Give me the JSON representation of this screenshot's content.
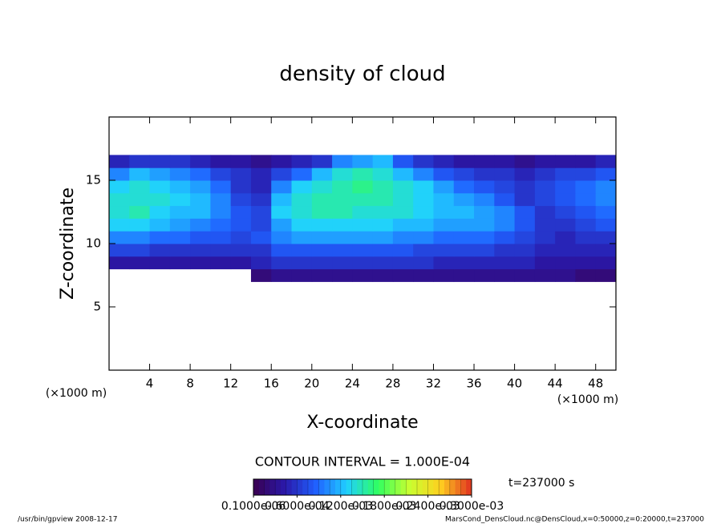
{
  "chart_data": {
    "type": "contour",
    "title": "density of cloud",
    "x_label": "X-coordinate",
    "y_label": "Z-coordinate",
    "x_unit": "(×1000 m)",
    "y_unit": "(×1000 m)",
    "contour_interval": "CONTOUR INTERVAL = 1.000E-04",
    "time_label": "t=237000 s",
    "footer_left": "/usr/bin/gpview   2008-12-17",
    "footer_right": "MarsCond_DensCloud.nc@DensCloud,x=0:50000,z=0:20000,t=237000",
    "xlim": [
      0,
      50
    ],
    "xticks": [
      4,
      8,
      12,
      16,
      20,
      24,
      28,
      32,
      36,
      40,
      44,
      48
    ],
    "ylim": [
      0,
      20
    ],
    "yticks": [
      5,
      10,
      15
    ],
    "x": [
      1,
      3,
      5,
      7,
      9,
      11,
      13,
      15,
      17,
      19,
      21,
      23,
      25,
      27,
      29,
      31,
      33,
      35,
      37,
      39,
      41,
      43,
      45,
      47,
      49
    ],
    "z": [
      7.5,
      8.5,
      9.5,
      10.5,
      11.5,
      12.5,
      13.5,
      14.5,
      15.5,
      16.5
    ],
    "values": [
      [
        null,
        null,
        null,
        null,
        null,
        null,
        null,
        2e-05,
        3e-05,
        3e-05,
        3e-05,
        3e-05,
        3e-05,
        3e-05,
        3e-05,
        3e-05,
        3e-05,
        3e-05,
        3e-05,
        3e-05,
        3e-05,
        3e-05,
        3e-05,
        2e-05,
        2e-05
      ],
      [
        4e-05,
        4e-05,
        4e-05,
        4e-05,
        4e-05,
        4e-05,
        4e-05,
        5e-05,
        6e-05,
        6e-05,
        6e-05,
        6e-05,
        6e-05,
        6e-05,
        6e-05,
        6e-05,
        5e-05,
        5e-05,
        5e-05,
        5e-05,
        5e-05,
        4e-05,
        4e-05,
        4e-05,
        4e-05
      ],
      [
        7e-05,
        7e-05,
        6e-05,
        6e-05,
        6e-05,
        6e-05,
        6e-05,
        6e-05,
        8e-05,
        8e-05,
        8e-05,
        8e-05,
        8e-05,
        8e-05,
        8e-05,
        7e-05,
        7e-05,
        7e-05,
        7e-05,
        6e-05,
        6e-05,
        5e-05,
        5e-05,
        5e-05,
        5e-05
      ],
      [
        0.0001,
        0.0001,
        9e-05,
        9e-05,
        8e-05,
        8e-05,
        7e-05,
        8e-05,
        0.0001,
        0.00011,
        0.00011,
        0.00011,
        0.00011,
        0.00011,
        0.0001,
        0.0001,
        9e-05,
        9e-05,
        9e-05,
        8e-05,
        7e-05,
        6e-05,
        5e-05,
        6e-05,
        6e-05
      ],
      [
        0.00013,
        0.00013,
        0.00012,
        0.00011,
        0.0001,
        9e-05,
        8e-05,
        7e-05,
        0.00011,
        0.00013,
        0.00013,
        0.00013,
        0.00013,
        0.00013,
        0.00012,
        0.00012,
        0.00011,
        0.00011,
        0.00011,
        0.0001,
        8e-05,
        6e-05,
        6e-05,
        7e-05,
        8e-05
      ],
      [
        0.00014,
        0.00015,
        0.00013,
        0.00012,
        0.00012,
        0.0001,
        8e-05,
        7e-05,
        0.00013,
        0.00014,
        0.00015,
        0.00015,
        0.00014,
        0.00014,
        0.00014,
        0.00013,
        0.00012,
        0.00012,
        0.00011,
        0.0001,
        8e-05,
        6e-05,
        7e-05,
        8e-05,
        9e-05
      ],
      [
        0.00014,
        0.00014,
        0.00014,
        0.00013,
        0.00012,
        0.0001,
        7e-05,
        6e-05,
        0.00012,
        0.00014,
        0.00015,
        0.00015,
        0.00015,
        0.00015,
        0.00014,
        0.00013,
        0.00012,
        0.00011,
        0.0001,
        8e-05,
        6e-05,
        7e-05,
        8e-05,
        9e-05,
        0.0001
      ],
      [
        0.00013,
        0.00014,
        0.00013,
        0.00012,
        0.00011,
        9e-05,
        6e-05,
        5e-05,
        0.0001,
        0.00013,
        0.00014,
        0.00015,
        0.00016,
        0.00015,
        0.00014,
        0.00013,
        0.00011,
        9e-05,
        8e-05,
        7e-05,
        6e-05,
        7e-05,
        8e-05,
        9e-05,
        0.0001
      ],
      [
        0.0001,
        0.00012,
        0.00011,
        0.0001,
        9e-05,
        7e-05,
        6e-05,
        5e-05,
        7e-05,
        9e-05,
        0.00012,
        0.00014,
        0.00015,
        0.00014,
        0.00012,
        0.0001,
        8e-05,
        7e-05,
        6e-05,
        6e-05,
        5e-05,
        6e-05,
        7e-05,
        7e-05,
        8e-05
      ],
      [
        5e-05,
        6e-05,
        6e-05,
        6e-05,
        5e-05,
        4e-05,
        4e-05,
        3e-05,
        4e-05,
        5e-05,
        6e-05,
        0.0001,
        0.00011,
        0.00012,
        8e-05,
        6e-05,
        5e-05,
        4e-05,
        4e-05,
        4e-05,
        3e-05,
        4e-05,
        4e-05,
        4e-05,
        5e-05
      ]
    ],
    "colorbar": {
      "lim": [
        0,
        0.0003
      ],
      "ticks": [
        {
          "value": 1e-07,
          "label": "0.1000e-06"
        },
        {
          "value": 6e-05,
          "label": "0.6000e-04"
        },
        {
          "value": 0.00012,
          "label": "0.1200e-03"
        },
        {
          "value": 0.00018,
          "label": "0.1800e-03"
        },
        {
          "value": 0.00024,
          "label": "0.2400e-03"
        },
        {
          "value": 0.0003,
          "label": "0.3000e-03"
        }
      ],
      "colormap": [
        "#3a0050",
        "#2a18a8",
        "#2060ff",
        "#20d0ff",
        "#30ff60",
        "#c8ff30",
        "#ffd020",
        "#e03020"
      ]
    }
  }
}
